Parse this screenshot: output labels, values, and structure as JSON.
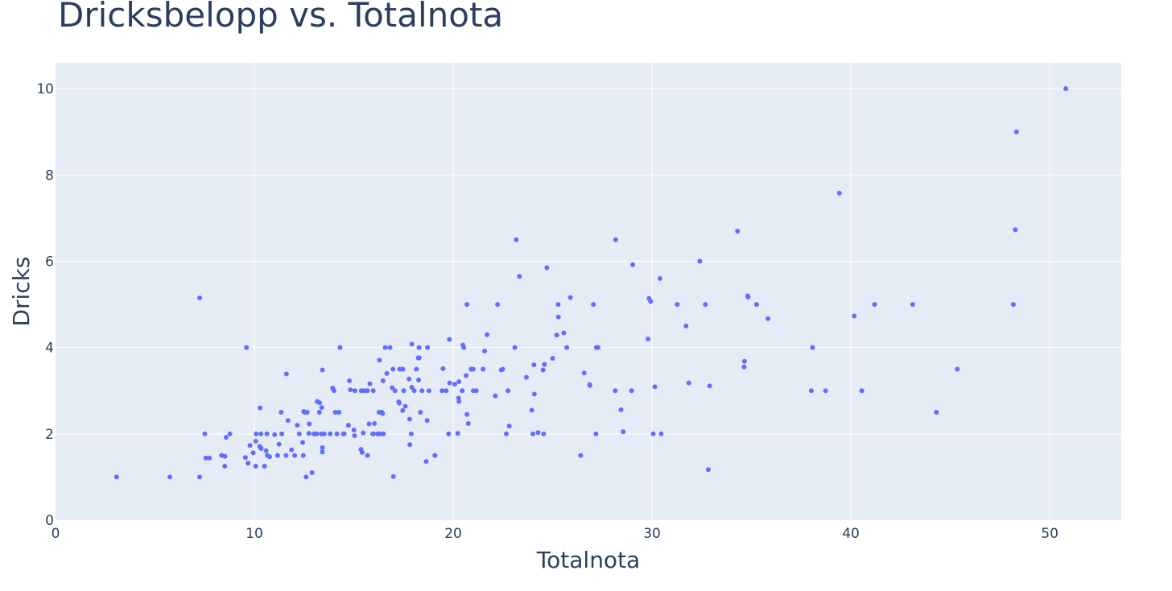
{
  "chart_data": {
    "type": "scatter",
    "title": "Dricksbelopp vs. Totalnota",
    "xlabel": "Totalnota",
    "ylabel": "Dricks",
    "xlim": [
      0,
      53.6
    ],
    "ylim": [
      0,
      10.6
    ],
    "xticks": [
      0,
      10,
      20,
      30,
      40,
      50
    ],
    "yticks": [
      0,
      2,
      4,
      6,
      8,
      10
    ],
    "grid": true,
    "colors": {
      "marker": "#636efa",
      "plot_bg": "#e5ecf6",
      "grid": "#ffffff",
      "text": "#2a3f5f"
    },
    "points": [
      [
        3.07,
        1.0
      ],
      [
        5.75,
        1.0
      ],
      [
        7.25,
        1.0
      ],
      [
        7.25,
        5.15
      ],
      [
        7.51,
        2.0
      ],
      [
        7.56,
        1.44
      ],
      [
        7.74,
        1.44
      ],
      [
        8.35,
        1.5
      ],
      [
        8.51,
        1.25
      ],
      [
        8.52,
        1.48
      ],
      [
        8.58,
        1.92
      ],
      [
        8.77,
        2.0
      ],
      [
        9.55,
        1.45
      ],
      [
        9.6,
        4.0
      ],
      [
        9.68,
        1.32
      ],
      [
        9.78,
        1.73
      ],
      [
        9.94,
        1.56
      ],
      [
        10.07,
        1.25
      ],
      [
        10.07,
        1.83
      ],
      [
        10.09,
        2.0
      ],
      [
        10.27,
        1.71
      ],
      [
        10.29,
        2.6
      ],
      [
        10.33,
        1.67
      ],
      [
        10.33,
        2.0
      ],
      [
        10.34,
        1.66
      ],
      [
        10.51,
        1.25
      ],
      [
        10.59,
        1.61
      ],
      [
        10.63,
        2.0
      ],
      [
        10.65,
        1.5
      ],
      [
        10.77,
        1.47
      ],
      [
        11.02,
        1.98
      ],
      [
        11.17,
        1.5
      ],
      [
        11.24,
        1.76
      ],
      [
        11.35,
        2.5
      ],
      [
        11.38,
        2.0
      ],
      [
        11.59,
        1.5
      ],
      [
        11.61,
        3.39
      ],
      [
        11.69,
        2.31
      ],
      [
        11.87,
        1.63
      ],
      [
        12.03,
        1.5
      ],
      [
        12.16,
        2.2
      ],
      [
        12.26,
        2.0
      ],
      [
        12.43,
        1.8
      ],
      [
        12.46,
        1.5
      ],
      [
        12.48,
        2.52
      ],
      [
        12.54,
        2.5
      ],
      [
        12.6,
        1.0
      ],
      [
        12.66,
        2.5
      ],
      [
        12.74,
        2.01
      ],
      [
        12.76,
        2.23
      ],
      [
        12.9,
        1.1
      ],
      [
        13.0,
        2.0
      ],
      [
        13.13,
        2.0
      ],
      [
        13.16,
        2.75
      ],
      [
        13.27,
        2.5
      ],
      [
        13.28,
        2.72
      ],
      [
        13.37,
        2.0
      ],
      [
        13.39,
        2.61
      ],
      [
        13.42,
        1.58
      ],
      [
        13.42,
        3.48
      ],
      [
        13.42,
        1.68
      ],
      [
        13.51,
        2.0
      ],
      [
        13.81,
        2.0
      ],
      [
        13.94,
        3.06
      ],
      [
        14.0,
        3.0
      ],
      [
        14.07,
        2.5
      ],
      [
        14.15,
        2.0
      ],
      [
        14.26,
        2.5
      ],
      [
        14.31,
        4.0
      ],
      [
        14.48,
        2.0
      ],
      [
        14.52,
        2.0
      ],
      [
        14.73,
        2.2
      ],
      [
        14.78,
        3.23
      ],
      [
        14.83,
        3.02
      ],
      [
        15.01,
        2.09
      ],
      [
        15.04,
        1.96
      ],
      [
        15.06,
        3.0
      ],
      [
        15.36,
        1.64
      ],
      [
        15.38,
        3.0
      ],
      [
        15.42,
        1.57
      ],
      [
        15.48,
        2.02
      ],
      [
        15.53,
        3.0
      ],
      [
        15.69,
        3.0
      ],
      [
        15.69,
        1.5
      ],
      [
        15.77,
        2.23
      ],
      [
        15.81,
        3.16
      ],
      [
        15.95,
        2.0
      ],
      [
        15.98,
        3.0
      ],
      [
        16.0,
        2.0
      ],
      [
        16.04,
        2.24
      ],
      [
        16.21,
        2.0
      ],
      [
        16.27,
        2.5
      ],
      [
        16.29,
        3.71
      ],
      [
        16.31,
        2.0
      ],
      [
        16.4,
        2.5
      ],
      [
        16.45,
        2.47
      ],
      [
        16.47,
        3.23
      ],
      [
        16.49,
        2.0
      ],
      [
        16.58,
        4.0
      ],
      [
        16.66,
        3.4
      ],
      [
        16.82,
        4.0
      ],
      [
        16.93,
        3.07
      ],
      [
        16.97,
        3.5
      ],
      [
        16.99,
        1.01
      ],
      [
        17.07,
        3.0
      ],
      [
        17.26,
        2.74
      ],
      [
        17.29,
        2.71
      ],
      [
        17.31,
        3.5
      ],
      [
        17.46,
        2.54
      ],
      [
        17.47,
        3.5
      ],
      [
        17.51,
        3.0
      ],
      [
        17.59,
        2.64
      ],
      [
        17.78,
        3.27
      ],
      [
        17.81,
        2.34
      ],
      [
        17.82,
        1.75
      ],
      [
        17.89,
        2.0
      ],
      [
        17.92,
        4.08
      ],
      [
        17.92,
        3.08
      ],
      [
        18.04,
        3.0
      ],
      [
        18.15,
        3.5
      ],
      [
        18.24,
        3.76
      ],
      [
        18.26,
        3.25
      ],
      [
        18.28,
        4.0
      ],
      [
        18.29,
        3.76
      ],
      [
        18.35,
        2.5
      ],
      [
        18.43,
        3.0
      ],
      [
        18.64,
        1.36
      ],
      [
        18.69,
        2.31
      ],
      [
        18.71,
        4.0
      ],
      [
        18.78,
        3.0
      ],
      [
        19.08,
        1.5
      ],
      [
        19.44,
        3.0
      ],
      [
        19.49,
        3.51
      ],
      [
        19.65,
        3.0
      ],
      [
        19.77,
        2.0
      ],
      [
        19.81,
        4.19
      ],
      [
        19.82,
        3.18
      ],
      [
        20.08,
        3.15
      ],
      [
        20.23,
        2.01
      ],
      [
        20.27,
        2.83
      ],
      [
        20.29,
        2.75
      ],
      [
        20.29,
        3.21
      ],
      [
        20.45,
        3.0
      ],
      [
        20.49,
        4.06
      ],
      [
        20.53,
        4.0
      ],
      [
        20.65,
        3.35
      ],
      [
        20.69,
        5.0
      ],
      [
        20.69,
        2.45
      ],
      [
        20.76,
        2.24
      ],
      [
        20.9,
        3.5
      ],
      [
        21.01,
        3.5
      ],
      [
        21.01,
        3.0
      ],
      [
        21.16,
        3.0
      ],
      [
        21.5,
        3.5
      ],
      [
        21.58,
        3.92
      ],
      [
        21.7,
        4.3
      ],
      [
        22.12,
        2.88
      ],
      [
        22.23,
        5.0
      ],
      [
        22.42,
        3.48
      ],
      [
        22.49,
        3.5
      ],
      [
        22.67,
        2.0
      ],
      [
        22.76,
        3.0
      ],
      [
        22.82,
        2.18
      ],
      [
        23.1,
        4.0
      ],
      [
        23.17,
        6.5
      ],
      [
        23.33,
        5.65
      ],
      [
        23.68,
        3.31
      ],
      [
        23.95,
        2.55
      ],
      [
        24.01,
        2.0
      ],
      [
        24.06,
        3.6
      ],
      [
        24.08,
        2.92
      ],
      [
        24.27,
        2.03
      ],
      [
        24.52,
        3.48
      ],
      [
        24.55,
        2.0
      ],
      [
        24.59,
        3.61
      ],
      [
        24.71,
        5.85
      ],
      [
        25.0,
        3.75
      ],
      [
        25.21,
        4.29
      ],
      [
        25.28,
        5.0
      ],
      [
        25.29,
        4.71
      ],
      [
        25.56,
        4.34
      ],
      [
        25.71,
        4.0
      ],
      [
        25.89,
        5.16
      ],
      [
        26.41,
        1.5
      ],
      [
        26.59,
        3.41
      ],
      [
        26.86,
        3.14
      ],
      [
        26.88,
        3.12
      ],
      [
        27.05,
        5.0
      ],
      [
        27.18,
        2.0
      ],
      [
        27.2,
        4.0
      ],
      [
        27.28,
        4.0
      ],
      [
        28.15,
        3.0
      ],
      [
        28.17,
        6.5
      ],
      [
        28.44,
        2.56
      ],
      [
        28.55,
        2.05
      ],
      [
        28.97,
        3.0
      ],
      [
        29.03,
        5.92
      ],
      [
        29.8,
        4.2
      ],
      [
        29.85,
        5.14
      ],
      [
        29.93,
        5.07
      ],
      [
        30.06,
        2.0
      ],
      [
        30.14,
        3.09
      ],
      [
        30.4,
        5.6
      ],
      [
        30.46,
        2.0
      ],
      [
        31.27,
        5.0
      ],
      [
        31.71,
        4.5
      ],
      [
        31.85,
        3.18
      ],
      [
        32.4,
        6.0
      ],
      [
        32.68,
        5.0
      ],
      [
        32.83,
        1.17
      ],
      [
        32.9,
        3.11
      ],
      [
        34.3,
        6.7
      ],
      [
        34.63,
        3.55
      ],
      [
        34.65,
        3.68
      ],
      [
        34.81,
        5.2
      ],
      [
        34.83,
        5.17
      ],
      [
        35.26,
        5.0
      ],
      [
        35.83,
        4.67
      ],
      [
        38.01,
        3.0
      ],
      [
        38.07,
        4.0
      ],
      [
        38.73,
        3.0
      ],
      [
        39.42,
        7.58
      ],
      [
        40.17,
        4.73
      ],
      [
        40.55,
        3.0
      ],
      [
        41.19,
        5.0
      ],
      [
        43.11,
        5.0
      ],
      [
        44.3,
        2.5
      ],
      [
        45.35,
        3.5
      ],
      [
        48.17,
        5.0
      ],
      [
        48.27,
        6.73
      ],
      [
        48.33,
        9.0
      ],
      [
        50.81,
        10.0
      ]
    ]
  }
}
